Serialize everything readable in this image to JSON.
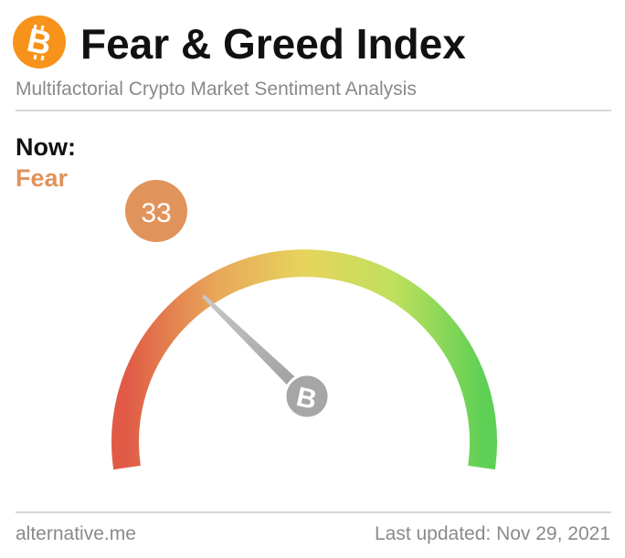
{
  "header": {
    "title": "Fear & Greed Index",
    "subtitle": "Multifactorial Crypto Market Sentiment Analysis",
    "logo_icon": "bitcoin-icon",
    "logo_color": "#f7931a"
  },
  "now": {
    "label": "Now:",
    "classification": "Fear",
    "value": "33",
    "value_color": "#e0935b"
  },
  "gauge": {
    "min": 0,
    "max": 100,
    "current": 33,
    "hub_icon": "bitcoin-icon",
    "gradient_colors": [
      "#e05a46",
      "#e8a659",
      "#e7d45c",
      "#bfe05d",
      "#5ed055"
    ]
  },
  "footer": {
    "source": "alternative.me",
    "updated": "Last updated: Nov 29, 2021"
  }
}
